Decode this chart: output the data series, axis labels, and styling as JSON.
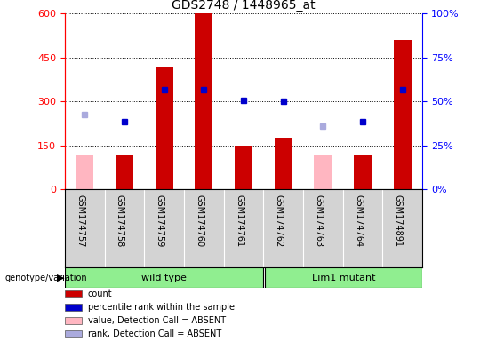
{
  "title": "GDS2748 / 1448965_at",
  "samples": [
    "GSM174757",
    "GSM174758",
    "GSM174759",
    "GSM174760",
    "GSM174761",
    "GSM174762",
    "GSM174763",
    "GSM174764",
    "GSM174891"
  ],
  "count_values": [
    null,
    120,
    420,
    600,
    150,
    175,
    null,
    115,
    510
  ],
  "count_absent_values": [
    115,
    null,
    null,
    null,
    null,
    null,
    120,
    null,
    null
  ],
  "percentile_values": [
    null,
    230,
    340,
    340,
    305,
    300,
    null,
    230,
    340
  ],
  "percentile_absent_values": [
    255,
    null,
    null,
    null,
    null,
    null,
    215,
    null,
    null
  ],
  "ylim_left": [
    0,
    600
  ],
  "ylim_right": [
    0,
    100
  ],
  "yticks_left": [
    0,
    150,
    300,
    450,
    600
  ],
  "yticks_right": [
    0,
    25,
    50,
    75,
    100
  ],
  "wt_samples": 5,
  "lm_samples": 4,
  "group_labels": [
    "wild type",
    "Lim1 mutant"
  ],
  "group_colors": [
    "#90ee90",
    "#90ee90"
  ],
  "group_label": "genotype/variation",
  "bar_color_present": "#cc0000",
  "bar_color_absent": "#ffb6c1",
  "dot_color_present": "#0000cc",
  "dot_color_absent": "#aaaadd",
  "background_color": "#d3d3d3",
  "plot_bg": "#ffffff",
  "legend_items": [
    {
      "color": "#cc0000",
      "label": "count"
    },
    {
      "color": "#0000cc",
      "label": "percentile rank within the sample"
    },
    {
      "color": "#ffb6c1",
      "label": "value, Detection Call = ABSENT"
    },
    {
      "color": "#aaaadd",
      "label": "rank, Detection Call = ABSENT"
    }
  ]
}
